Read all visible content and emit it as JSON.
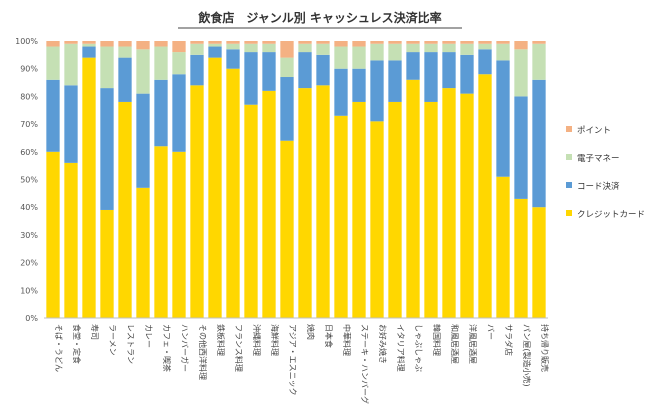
{
  "chart_data": {
    "type": "bar",
    "stacked": true,
    "title": "飲食店　ジャンル別 キャッシュレス決済比率",
    "xlabel": "",
    "ylabel": "",
    "ylim": [
      0,
      100
    ],
    "yticks": [
      "0%",
      "10%",
      "20%",
      "30%",
      "40%",
      "50%",
      "60%",
      "70%",
      "80%",
      "90%",
      "100%"
    ],
    "grid": false,
    "legend_position": "right",
    "categories": [
      "そば・うどん",
      "食堂・定食",
      "寿司",
      "ラーメン",
      "レストラン",
      "カレー",
      "カフェ・喫茶",
      "ハンバーガー",
      "その他西洋料理",
      "鉄板料理",
      "フランス料理",
      "沖縄料理",
      "海鮮料理",
      "アジア・エスニック",
      "焼肉",
      "日本食",
      "中華料理",
      "ステーキ・ハンバーグ",
      "お好み焼き",
      "イタリア料理",
      "しゃぶしゃぶ",
      "韓国料理",
      "和風居酒屋",
      "洋風居酒屋",
      "バー",
      "サラダ店",
      "パン屋(製造小売)",
      "持ち帰り販売"
    ],
    "series": [
      {
        "name": "クレジットカード",
        "color": "#FFD700",
        "values": [
          60,
          56,
          94,
          39,
          78,
          47,
          62,
          60,
          84,
          94,
          90,
          77,
          82,
          64,
          83,
          84,
          73,
          78,
          71,
          78,
          86,
          78,
          83,
          81,
          88,
          51,
          43,
          40
        ]
      },
      {
        "name": "コード決済",
        "color": "#5B9BD5",
        "values": [
          26,
          28,
          4,
          44,
          16,
          34,
          24,
          28,
          11,
          4,
          7,
          19,
          14,
          23,
          13,
          11,
          17,
          12,
          22,
          15,
          10,
          18,
          13,
          14,
          9,
          42,
          37,
          46
        ]
      },
      {
        "name": "電子マネー",
        "color": "#C5E0B4",
        "values": [
          12,
          15,
          1,
          15,
          4,
          16,
          12,
          8,
          4,
          1,
          2,
          3,
          3,
          7,
          3,
          4,
          8,
          8,
          6,
          6,
          3,
          3,
          3,
          4,
          2,
          6,
          17,
          13
        ]
      },
      {
        "name": "ポイント",
        "color": "#F4B183",
        "values": [
          2,
          1,
          1,
          2,
          2,
          3,
          2,
          4,
          1,
          1,
          1,
          1,
          1,
          6,
          1,
          1,
          2,
          2,
          1,
          1,
          1,
          1,
          1,
          1,
          1,
          1,
          3,
          1
        ]
      }
    ],
    "legend_order": [
      "ポイント",
      "電子マネー",
      "コード決済",
      "クレジットカード"
    ]
  }
}
